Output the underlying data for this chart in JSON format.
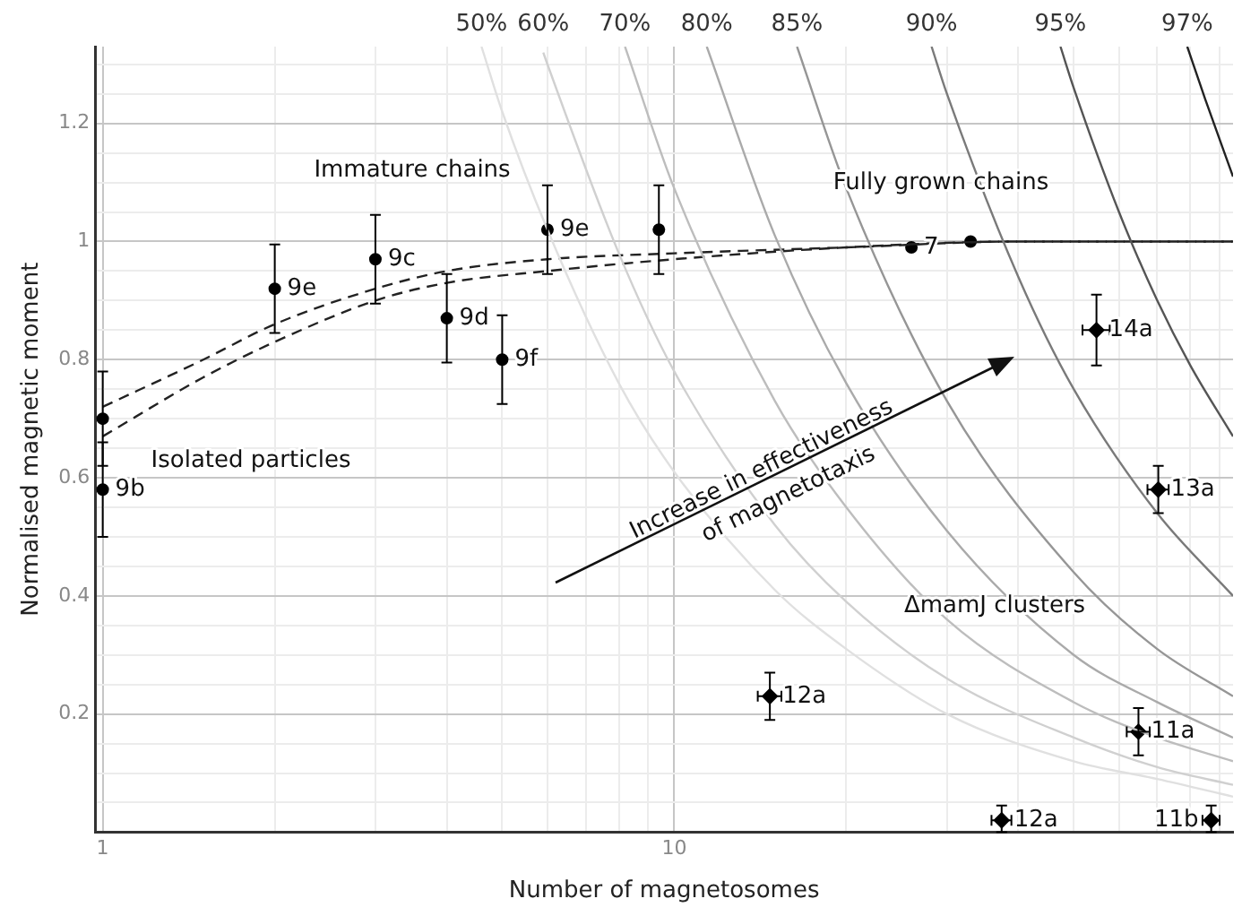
{
  "chart_data": {
    "type": "scatter",
    "xlabel": "Number of magnetosomes",
    "ylabel": "Normalised magnetic moment",
    "log": "x",
    "grid": true,
    "legend": false,
    "xlim": [
      0.97,
      95
    ],
    "ylim": [
      0,
      1.33
    ],
    "xticks": [
      1,
      {
        "value": 2,
        "label": null
      },
      {
        "value": 3,
        "label": null
      },
      {
        "value": 4,
        "label": null
      },
      {
        "value": 5,
        "label": null
      },
      {
        "value": 6,
        "label": null
      },
      {
        "value": 7,
        "label": null
      },
      {
        "value": 8,
        "label": null
      },
      {
        "value": 9,
        "label": null
      },
      10,
      {
        "value": 20,
        "label": null
      },
      {
        "value": 30,
        "label": null
      },
      {
        "value": 40,
        "label": null
      },
      {
        "value": 50,
        "label": null
      },
      {
        "value": 60,
        "label": null
      },
      {
        "value": 70,
        "label": null
      },
      {
        "value": 80,
        "label": null
      },
      {
        "value": 90,
        "label": null
      }
    ],
    "yticks": [
      {
        "value": 0.05,
        "label": null
      },
      {
        "value": 0.1,
        "label": null
      },
      {
        "value": 0.15,
        "label": null
      },
      0.2,
      {
        "value": 0.25,
        "label": null
      },
      {
        "value": 0.3,
        "label": null
      },
      {
        "value": 0.35,
        "label": null
      },
      0.4,
      {
        "value": 0.45,
        "label": null
      },
      {
        "value": 0.5,
        "label": null
      },
      {
        "value": 0.55,
        "label": null
      },
      0.6,
      {
        "value": 0.65,
        "label": null
      },
      {
        "value": 0.7,
        "label": null
      },
      {
        "value": 0.75,
        "label": null
      },
      0.8,
      {
        "value": 0.85,
        "label": null
      },
      {
        "value": 0.9,
        "label": null
      },
      {
        "value": 0.95,
        "label": null
      },
      1,
      {
        "value": 1.05,
        "label": null
      },
      {
        "value": 1.1,
        "label": null
      },
      {
        "value": 1.15,
        "label": null
      },
      1.2,
      {
        "value": 1.25,
        "label": null
      },
      {
        "value": 1.3,
        "label": null
      }
    ],
    "annotations": [
      "Immature chains",
      "Fully grown chains",
      "Isolated particles",
      "ΔmamJ clusters",
      "Increase in effectiveness",
      "of magnetotaxis",
      {
        "text": "9b",
        "x": 1,
        "y": 0.58
      },
      {
        "text": "9e",
        "x": 2,
        "y": 0.92
      },
      {
        "text": "9c",
        "x": 3,
        "y": 0.97
      },
      {
        "text": "9d",
        "x": 4,
        "y": 0.87
      },
      {
        "text": "9f",
        "x": 5,
        "y": 0.8
      },
      {
        "text": "9e",
        "x": 6,
        "y": 1.02
      },
      {
        "text": "7",
        "x": 26,
        "y": 0.99
      },
      {
        "text": "12a",
        "x": 14.7,
        "y": 0.23
      },
      {
        "text": "12a",
        "x": 37.4,
        "y": 0.02
      },
      {
        "text": "14a",
        "x": 54.8,
        "y": 0.85
      },
      {
        "text": "11a",
        "x": 64.9,
        "y": 0.17
      },
      {
        "text": "13a",
        "x": 70.3,
        "y": 0.58
      },
      {
        "text": "11b",
        "x": 87,
        "y": 0.02
      }
    ],
    "series": [
      {
        "type": "line",
        "name": "50%",
        "color": "#e0e0e0",
        "marker": "none",
        "line_style": "solid",
        "x": [
          4.6,
          5,
          6,
          8,
          10,
          15,
          20,
          30,
          50,
          70,
          95
        ],
        "values": [
          1.33,
          1.22,
          1.02,
          0.76,
          0.61,
          0.41,
          0.31,
          0.2,
          0.12,
          0.09,
          0.06
        ]
      },
      {
        "type": "line",
        "name": "60%",
        "color": "#d0d0d0",
        "marker": "none",
        "line_style": "solid",
        "x": [
          5.9,
          6,
          8,
          10,
          15,
          20,
          30,
          50,
          70,
          95
        ],
        "values": [
          1.32,
          1.3,
          0.98,
          0.78,
          0.52,
          0.39,
          0.26,
          0.16,
          0.11,
          0.08
        ]
      },
      {
        "type": "line",
        "name": "70%",
        "color": "#bdbdbd",
        "marker": "none",
        "line_style": "solid",
        "x": [
          8.2,
          10,
          15,
          20,
          30,
          50,
          70,
          95
        ],
        "values": [
          1.33,
          1.09,
          0.73,
          0.55,
          0.36,
          0.22,
          0.16,
          0.12
        ]
      },
      {
        "type": "line",
        "name": "80%",
        "color": "#aaaaaa",
        "marker": "none",
        "line_style": "solid",
        "x": [
          11.4,
          15,
          20,
          30,
          50,
          70,
          95
        ],
        "values": [
          1.33,
          1.01,
          0.76,
          0.51,
          0.3,
          0.22,
          0.16
        ]
      },
      {
        "type": "line",
        "name": "85%",
        "color": "#969696",
        "marker": "none",
        "line_style": "solid",
        "x": [
          16.4,
          20,
          30,
          50,
          70,
          95
        ],
        "values": [
          1.33,
          1.09,
          0.73,
          0.44,
          0.31,
          0.23
        ]
      },
      {
        "type": "line",
        "name": "90%",
        "color": "#7a7a7a",
        "marker": "none",
        "line_style": "solid",
        "x": [
          28.2,
          30,
          40,
          50,
          70,
          95
        ],
        "values": [
          1.33,
          1.25,
          0.94,
          0.75,
          0.54,
          0.4
        ]
      },
      {
        "type": "line",
        "name": "95%",
        "color": "#555555",
        "marker": "none",
        "line_style": "solid",
        "x": [
          47.4,
          50,
          60,
          70,
          80,
          95
        ],
        "values": [
          1.33,
          1.26,
          1.05,
          0.9,
          0.79,
          0.67
        ]
      },
      {
        "type": "line",
        "name": "97%",
        "color": "#222222",
        "marker": "none",
        "line_style": "solid",
        "x": [
          79,
          85,
          95
        ],
        "values": [
          1.33,
          1.24,
          1.11
        ]
      },
      {
        "type": "line",
        "color": "#222222",
        "marker": "none",
        "line_style": "dashed",
        "x": [
          1,
          1.5,
          2,
          3,
          4,
          6,
          10,
          20,
          40,
          95
        ],
        "values": [
          0.72,
          0.8,
          0.86,
          0.92,
          0.95,
          0.97,
          0.98,
          0.99,
          1,
          1
        ]
      },
      {
        "type": "line",
        "color": "#222222",
        "marker": "none",
        "line_style": "dashed",
        "x": [
          1,
          1.5,
          2,
          3,
          4,
          6,
          10,
          20,
          40,
          95
        ],
        "values": [
          0.67,
          0.77,
          0.83,
          0.9,
          0.93,
          0.95,
          0.97,
          0.99,
          1,
          1
        ]
      },
      {
        "type": "scatter",
        "color": "#000000",
        "marker": "circle",
        "x": [
          1,
          1,
          2,
          3,
          4,
          5,
          6,
          9.4,
          26,
          33
        ],
        "values": [
          0.7,
          0.58,
          0.92,
          0.97,
          0.87,
          0.8,
          1.02,
          1.02,
          0.99,
          1
        ],
        "errors": [
          0.08,
          0.08,
          0.075,
          0.075,
          0.075,
          0.075,
          0.075,
          0.075,
          null,
          null
        ]
      },
      {
        "type": "scatter",
        "color": "#000000",
        "marker": "diamond",
        "x": [
          14.7,
          37.4,
          54.8,
          64.9,
          70.3,
          87
        ],
        "values": [
          0.23,
          0.02,
          0.85,
          0.17,
          0.58,
          0.02
        ],
        "errors": [
          0.04,
          [
            0,
            0.045
          ],
          0.06,
          0.04,
          0.04,
          [
            0,
            0.045
          ]
        ],
        "xerrors": [
          0.7,
          1.5,
          3,
          3,
          3,
          3
        ]
      }
    ]
  }
}
